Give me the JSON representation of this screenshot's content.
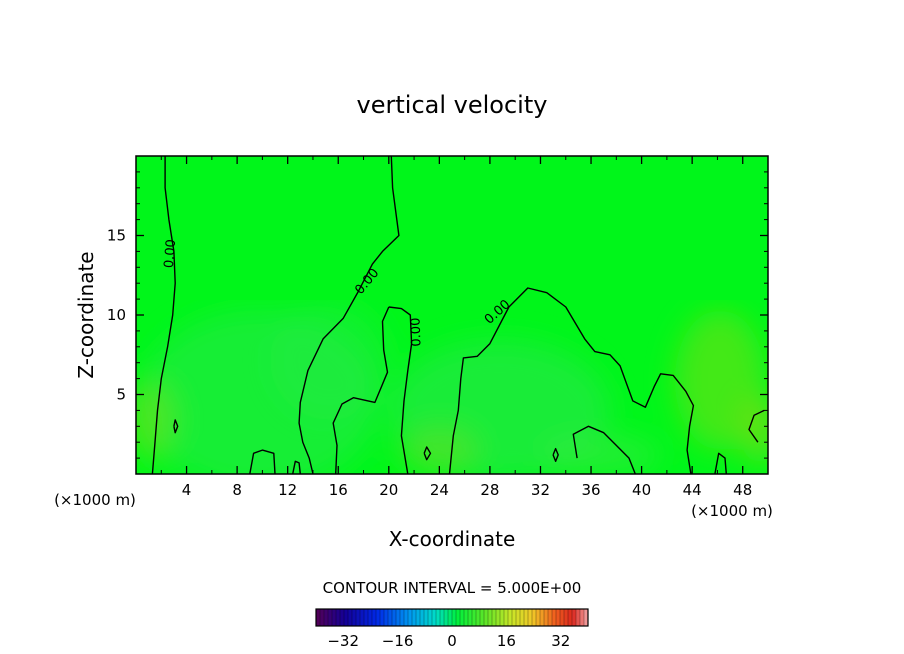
{
  "chart_data": {
    "type": "contour",
    "title": "vertical velocity",
    "xlabel": "X-coordinate",
    "ylabel": "Z-coordinate",
    "x_unit_label": "(×1000 m)",
    "x_unit_label_right": "(×1000 m)",
    "xlim": [
      0,
      50
    ],
    "ylim": [
      0,
      20
    ],
    "xticks": [
      4,
      8,
      12,
      16,
      20,
      24,
      28,
      32,
      36,
      40,
      44,
      48
    ],
    "yticks": [
      5,
      10,
      15
    ],
    "contour_level": 0.0,
    "contour_labels": [
      "0.00",
      "0.00",
      "0.00",
      "0.00"
    ],
    "contour_lines": [
      [
        [
          2.3,
          20
        ],
        [
          2.3,
          18
        ],
        [
          2.6,
          16
        ],
        [
          3.0,
          14
        ],
        [
          3.1,
          12
        ],
        [
          2.9,
          10
        ],
        [
          2.5,
          8
        ],
        [
          2.0,
          6
        ],
        [
          1.7,
          4
        ],
        [
          1.5,
          2
        ],
        [
          1.3,
          0
        ]
      ],
      [
        [
          20.2,
          20
        ],
        [
          20.3,
          18
        ],
        [
          20.8,
          15
        ],
        [
          19.5,
          14
        ],
        [
          18.7,
          13.2
        ],
        [
          17.6,
          11.5
        ],
        [
          16.4,
          9.8
        ],
        [
          14.8,
          8.5
        ],
        [
          13.6,
          6.5
        ],
        [
          13.0,
          4.5
        ],
        [
          12.9,
          3.2
        ],
        [
          13.2,
          2
        ],
        [
          13.7,
          1
        ],
        [
          14.0,
          0
        ]
      ],
      [
        [
          20.0,
          10.5
        ],
        [
          19.5,
          9.6
        ],
        [
          19.6,
          7.8
        ],
        [
          19.9,
          6.4
        ],
        [
          18.9,
          4.5
        ],
        [
          17.2,
          4.8
        ],
        [
          16.3,
          4.4
        ],
        [
          15.6,
          3.2
        ],
        [
          15.9,
          1.8
        ],
        [
          15.8,
          0
        ]
      ],
      [
        [
          20.0,
          10.5
        ],
        [
          21.0,
          10.4
        ],
        [
          21.7,
          10.0
        ],
        [
          21.8,
          8.2
        ],
        [
          21.5,
          6.5
        ],
        [
          21.2,
          4.6
        ],
        [
          21.0,
          2.4
        ],
        [
          21.5,
          0
        ]
      ],
      [
        [
          24.8,
          0
        ],
        [
          25.1,
          2.4
        ],
        [
          25.5,
          4
        ],
        [
          25.7,
          6
        ],
        [
          25.9,
          7.3
        ],
        [
          27.0,
          7.4
        ],
        [
          28.0,
          8.2
        ],
        [
          29.5,
          10.5
        ],
        [
          31.0,
          11.7
        ],
        [
          32.5,
          11.4
        ],
        [
          34.0,
          10.5
        ],
        [
          35.5,
          8.5
        ],
        [
          36.3,
          7.7
        ],
        [
          37.5,
          7.5
        ],
        [
          38.3,
          6.8
        ],
        [
          39.3,
          4.6
        ],
        [
          40.3,
          4.2
        ],
        [
          41.0,
          5.5
        ],
        [
          41.5,
          6.3
        ],
        [
          42.5,
          6.2
        ],
        [
          43.5,
          5.2
        ],
        [
          44.1,
          4.3
        ],
        [
          43.8,
          3.0
        ],
        [
          43.6,
          1.5
        ],
        [
          43.9,
          0
        ]
      ],
      [
        [
          34.9,
          1.0
        ],
        [
          34.6,
          2.5
        ],
        [
          35.8,
          3.0
        ],
        [
          37.0,
          2.6
        ],
        [
          38.0,
          1.8
        ],
        [
          39.0,
          1.0
        ],
        [
          39.5,
          0
        ]
      ],
      [
        [
          9.0,
          0
        ],
        [
          9.3,
          1.3
        ],
        [
          10.0,
          1.5
        ],
        [
          10.9,
          1.3
        ],
        [
          11.0,
          0
        ]
      ],
      [
        [
          45.8,
          0
        ],
        [
          46.1,
          1.3
        ],
        [
          46.6,
          1.0
        ],
        [
          46.7,
          0
        ]
      ],
      [
        [
          49.2,
          2.0
        ],
        [
          48.5,
          2.8
        ],
        [
          48.9,
          3.7
        ],
        [
          49.7,
          4.0
        ]
      ],
      [
        [
          3.0,
          3.0
        ],
        [
          3.1,
          3.4
        ],
        [
          3.3,
          3.0
        ],
        [
          3.1,
          2.6
        ],
        [
          3.0,
          3.0
        ]
      ],
      [
        [
          22.8,
          1.3
        ],
        [
          23.0,
          1.7
        ],
        [
          23.3,
          1.3
        ],
        [
          23.0,
          0.9
        ],
        [
          22.8,
          1.3
        ]
      ],
      [
        [
          33.0,
          1.2
        ],
        [
          33.2,
          1.6
        ],
        [
          33.4,
          1.2
        ],
        [
          33.2,
          0.8
        ],
        [
          33.0,
          1.2
        ]
      ],
      [
        [
          12.4,
          0
        ],
        [
          12.6,
          0.8
        ],
        [
          12.9,
          0.7
        ],
        [
          13.0,
          0
        ]
      ]
    ],
    "colorbar": {
      "title": "CONTOUR INTERVAL = 5.000E+00",
      "min": -40,
      "max": 40,
      "ticks": [
        -32,
        -16,
        0,
        16,
        32
      ],
      "tick_labels": [
        "−32",
        "−16",
        "0",
        "16",
        "32"
      ]
    },
    "colors": {
      "field": "#00f61a",
      "field_mid": "#22ea44",
      "contour": "#000000"
    }
  }
}
